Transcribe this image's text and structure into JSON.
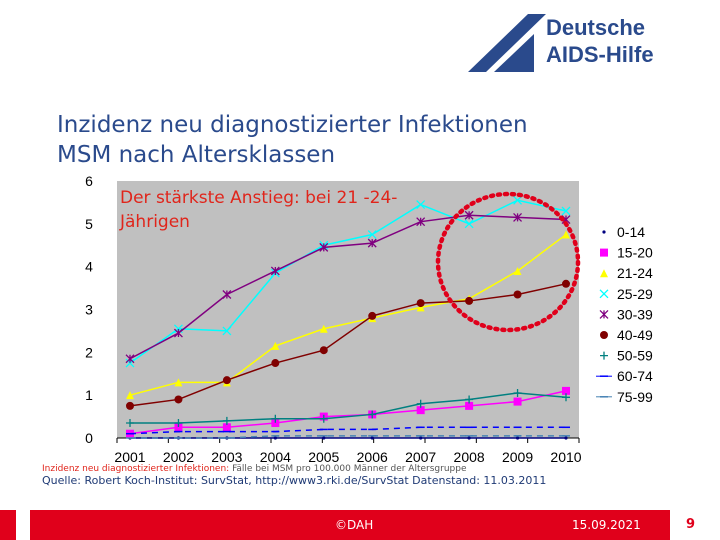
{
  "logo": {
    "line1": "Deutsche",
    "line2": "AIDS-Hilfe",
    "color": "#2a4a8c"
  },
  "title": {
    "line1": "Inzidenz neu diagnostizierter Infektionen",
    "line2": "MSM nach Altersklassen"
  },
  "callout": "Der stärkste Anstieg: bei 21 -24-Jährigen",
  "caption": {
    "label": "Inzidenz neu diagnostizierter Infektionen:",
    "text": "Fälle bei MSM pro 100.000 Männer der Altersgruppe"
  },
  "source": "Quelle: Robert Koch-Institut: SurvStat, http://www3.rki.de/SurvStat Datenstand: 11.03.2011",
  "footer": {
    "center": "©DAH",
    "date": "15.09.2021",
    "page": "9"
  },
  "chart_data": {
    "type": "line",
    "x": [
      2001,
      2002,
      2003,
      2004,
      2005,
      2006,
      2007,
      2008,
      2009,
      2010
    ],
    "ylim": [
      0,
      6
    ],
    "yticks": [
      0,
      1,
      2,
      3,
      4,
      5,
      6
    ],
    "plot_background": "#c0c0c0",
    "series": [
      {
        "name": "0-14",
        "color": "#000080",
        "marker": "dot",
        "values": [
          0.0,
          0.0,
          0.0,
          0.0,
          0.0,
          0.0,
          0.0,
          0.0,
          0.0,
          0.0
        ]
      },
      {
        "name": "15-20",
        "color": "#ff00ff",
        "marker": "square",
        "values": [
          0.1,
          0.25,
          0.25,
          0.35,
          0.5,
          0.55,
          0.65,
          0.75,
          0.85,
          1.1
        ]
      },
      {
        "name": "21-24",
        "color": "#ffff00",
        "marker": "triangle",
        "values": [
          1.0,
          1.3,
          1.3,
          2.15,
          2.55,
          2.8,
          3.05,
          3.25,
          3.9,
          4.75
        ]
      },
      {
        "name": "25-29",
        "color": "#00ffff",
        "marker": "x",
        "values": [
          1.75,
          2.55,
          2.5,
          3.85,
          4.5,
          4.75,
          5.45,
          5.0,
          5.55,
          5.3
        ]
      },
      {
        "name": "30-39",
        "color": "#800080",
        "marker": "star",
        "values": [
          1.85,
          2.45,
          3.35,
          3.9,
          4.45,
          4.55,
          5.05,
          5.2,
          5.15,
          5.1
        ]
      },
      {
        "name": "40-49",
        "color": "#800000",
        "marker": "circle",
        "values": [
          0.75,
          0.9,
          1.35,
          1.75,
          2.05,
          2.85,
          3.15,
          3.2,
          3.35,
          3.6
        ]
      },
      {
        "name": "50-59",
        "color": "#008080",
        "marker": "plus",
        "values": [
          0.35,
          0.35,
          0.4,
          0.45,
          0.45,
          0.55,
          0.8,
          0.9,
          1.05,
          0.95
        ]
      },
      {
        "name": "60-74",
        "color": "#0000ff",
        "marker": "dash",
        "values": [
          0.1,
          0.15,
          0.15,
          0.15,
          0.2,
          0.2,
          0.25,
          0.25,
          0.25,
          0.25
        ]
      },
      {
        "name": "75-99",
        "color": "#4682b4",
        "marker": "dash",
        "values": [
          0.0,
          0.0,
          0.0,
          0.05,
          0.05,
          0.05,
          0.05,
          0.05,
          0.05,
          0.05
        ]
      }
    ]
  }
}
